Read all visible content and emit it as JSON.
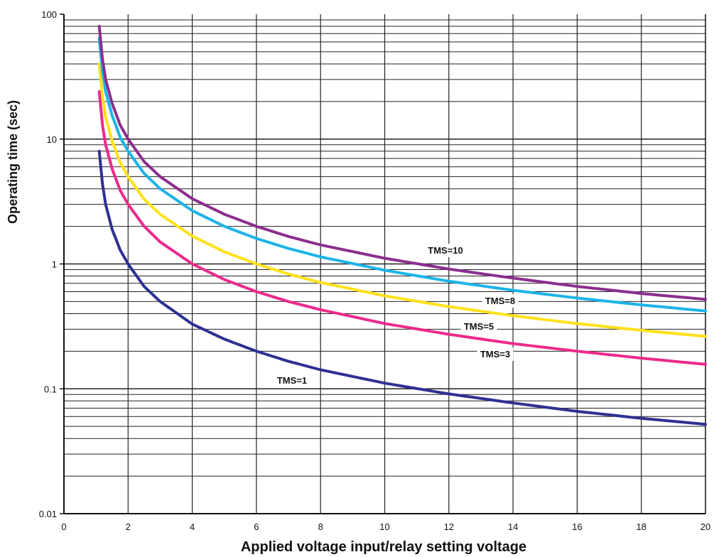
{
  "chart_data": {
    "type": "line",
    "xlabel": "Applied voltage input/relay setting voltage",
    "ylabel": "Operating time (sec)",
    "xlim": [
      0,
      20
    ],
    "ylim": [
      0.01,
      100
    ],
    "yscale": "log",
    "grid": true,
    "x_ticks": [
      "0",
      "2",
      "4",
      "6",
      "8",
      "10",
      "12",
      "14",
      "16",
      "18",
      "20"
    ],
    "y_ticks": [
      "0.01",
      "0.1",
      "1",
      "10",
      "100"
    ],
    "x": [
      1.1,
      1.2,
      1.3,
      1.5,
      1.75,
      2,
      2.5,
      3,
      4,
      5,
      6,
      7,
      8,
      10,
      12,
      14,
      16,
      18,
      20
    ],
    "series": [
      {
        "name": "TMS=1",
        "color": "#2e3192",
        "values": [
          8.0,
          4.4,
          3.0,
          1.9,
          1.3,
          1.0,
          0.66,
          0.5,
          0.33,
          0.25,
          0.2,
          0.166,
          0.142,
          0.111,
          0.091,
          0.077,
          0.066,
          0.058,
          0.052
        ]
      },
      {
        "name": "TMS=3",
        "color": "#ec2a8c",
        "values": [
          24.0,
          13.0,
          9.0,
          5.8,
          3.9,
          3.0,
          2.0,
          1.5,
          1.0,
          0.75,
          0.6,
          0.5,
          0.43,
          0.333,
          0.273,
          0.23,
          0.2,
          0.176,
          0.157
        ]
      },
      {
        "name": "TMS=5",
        "color": "#ffe11a",
        "values": [
          40.0,
          22.0,
          15.0,
          9.7,
          6.5,
          5.0,
          3.3,
          2.5,
          1.67,
          1.25,
          1.0,
          0.83,
          0.71,
          0.555,
          0.455,
          0.385,
          0.333,
          0.294,
          0.263
        ]
      },
      {
        "name": "TMS=8",
        "color": "#1cb4e8",
        "values": [
          64.0,
          35.0,
          24.0,
          15.5,
          10.4,
          8.0,
          5.3,
          4.0,
          2.67,
          2.0,
          1.6,
          1.33,
          1.14,
          0.89,
          0.727,
          0.615,
          0.533,
          0.47,
          0.42
        ]
      },
      {
        "name": "TMS=10",
        "color": "#8b2f8e",
        "values": [
          80.0,
          44.0,
          30.0,
          19.4,
          13.0,
          10.0,
          6.6,
          5.0,
          3.33,
          2.5,
          2.0,
          1.66,
          1.42,
          1.11,
          0.91,
          0.77,
          0.66,
          0.58,
          0.52
        ]
      }
    ]
  }
}
